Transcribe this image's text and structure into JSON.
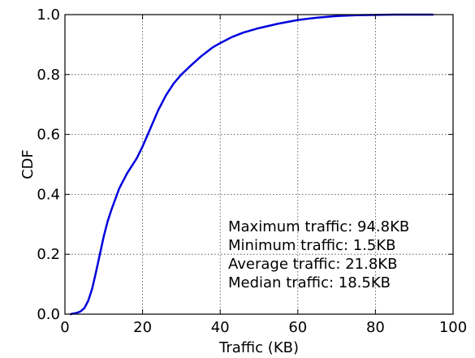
{
  "chart_data": {
    "type": "line",
    "xlabel": "Traffic (KB)",
    "ylabel": "CDF",
    "xlim": [
      0,
      100
    ],
    "ylim": [
      0,
      1.0
    ],
    "xticks": [
      "0",
      "20",
      "40",
      "60",
      "80",
      "100"
    ],
    "yticks": [
      "0.0",
      "0.2",
      "0.4",
      "0.6",
      "0.8",
      "1.0"
    ],
    "grid": true,
    "series": [
      {
        "color": "#0000dd",
        "x": [
          1.5,
          2,
          3,
          4,
          5,
          6,
          7,
          8,
          9,
          10,
          11,
          12,
          14,
          16,
          18.5,
          20,
          22,
          24,
          26,
          28,
          30,
          32,
          35,
          38,
          40,
          43,
          46,
          50,
          55,
          60,
          65,
          70,
          75,
          80,
          85,
          90,
          94.8
        ],
        "y": [
          0.0,
          0.002,
          0.004,
          0.009,
          0.02,
          0.045,
          0.085,
          0.14,
          0.2,
          0.26,
          0.31,
          0.35,
          0.42,
          0.47,
          0.52,
          0.56,
          0.62,
          0.68,
          0.73,
          0.77,
          0.8,
          0.825,
          0.86,
          0.89,
          0.905,
          0.925,
          0.94,
          0.955,
          0.97,
          0.982,
          0.99,
          0.995,
          0.998,
          0.999,
          1.0,
          1.0,
          1.0
        ]
      }
    ],
    "annotations": [
      "Maximum traffic: 94.8KB",
      "Minimum traffic: 1.5KB",
      "Average traffic: 21.8KB",
      "Median traffic: 18.5KB"
    ]
  }
}
